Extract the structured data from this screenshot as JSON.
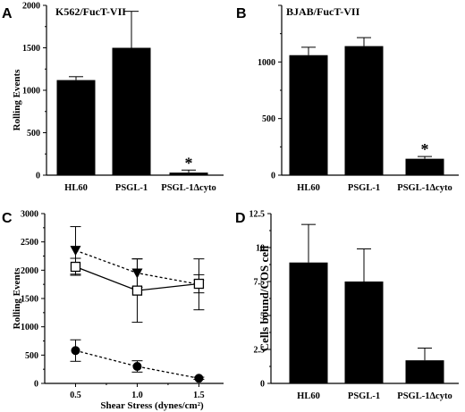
{
  "chart_data": [
    {
      "panel": "A",
      "type": "bar",
      "title": "K562/FucT-VII",
      "ylabel": "Rolling Events",
      "xlabel": "",
      "categories": [
        "HL60",
        "PSGL-1",
        "PSGL-1Δcyto"
      ],
      "values": [
        1120,
        1500,
        30
      ],
      "errors": [
        40,
        430,
        30
      ],
      "significance": [
        "",
        "",
        "*"
      ],
      "ylim": [
        0,
        2000
      ],
      "yticks": [
        0,
        500,
        1000,
        1500,
        2000
      ],
      "ytick_labels": [
        "0",
        "500",
        "1000",
        "1500",
        "2000"
      ],
      "bar_color": "#000000"
    },
    {
      "panel": "B",
      "type": "bar",
      "title": "BJAB/FucT-VII",
      "ylabel": "",
      "xlabel": "",
      "categories": [
        "HL60",
        "PSGL-1",
        "PSGL-1Δcyto"
      ],
      "values": [
        1060,
        1140,
        145
      ],
      "errors": [
        70,
        75,
        20
      ],
      "significance": [
        "",
        "",
        "*"
      ],
      "ylim": [
        0,
        1500
      ],
      "yticks": [
        0,
        500,
        1000,
        1500
      ],
      "ytick_labels": [
        "0",
        "500",
        "1000",
        ""
      ],
      "bar_color": "#000000"
    },
    {
      "panel": "C",
      "type": "line",
      "title": "",
      "ylabel": "Rolling Events",
      "xlabel": "Shear Stress (dynes/cm²)",
      "xlim": [
        0.25,
        1.7
      ],
      "ylim": [
        0,
        3000
      ],
      "x_ticks": [
        0.5,
        1.0,
        1.5
      ],
      "x_tick_labels": [
        "0.5",
        "1.0",
        "1.5"
      ],
      "y_ticks": [
        0,
        500,
        1000,
        1500,
        2000,
        2500,
        3000
      ],
      "y_tick_labels": [
        "0",
        "500",
        "1000",
        "1500",
        "2000",
        "2500",
        "3000"
      ],
      "series": [
        {
          "marker": "triangle-down-filled",
          "dash": "dotted",
          "x": [
            0.5,
            1.0,
            1.5
          ],
          "y": [
            2350,
            1950,
            1750
          ],
          "err": [
            420,
            250,
            450
          ]
        },
        {
          "marker": "square-open",
          "dash": "solid",
          "x": [
            0.5,
            1.0,
            1.5
          ],
          "y": [
            2060,
            1640,
            1760
          ],
          "err": [
            150,
            560,
            160
          ]
        },
        {
          "marker": "circle-filled",
          "dash": "dotted",
          "x": [
            0.5,
            1.0,
            1.5
          ],
          "y": [
            580,
            300,
            90
          ],
          "err": [
            190,
            100,
            20
          ]
        }
      ]
    },
    {
      "panel": "D",
      "type": "bar",
      "title": "",
      "ylabel": "Cells bound/COS cell",
      "xlabel": "",
      "categories": [
        "HL60",
        "PSGL-1",
        "PSGL-1Δcyto"
      ],
      "values": [
        8.9,
        7.5,
        1.7
      ],
      "errors": [
        2.8,
        2.4,
        0.9
      ],
      "significance": [
        "",
        "",
        ""
      ],
      "ylim": [
        0,
        12.5
      ],
      "yticks": [
        0,
        2.5,
        5,
        7.5,
        10,
        12.5
      ],
      "ytick_labels": [
        "0",
        "2.5",
        "5",
        "7.5",
        "10",
        "12.5"
      ],
      "bar_color": "#000000"
    }
  ]
}
